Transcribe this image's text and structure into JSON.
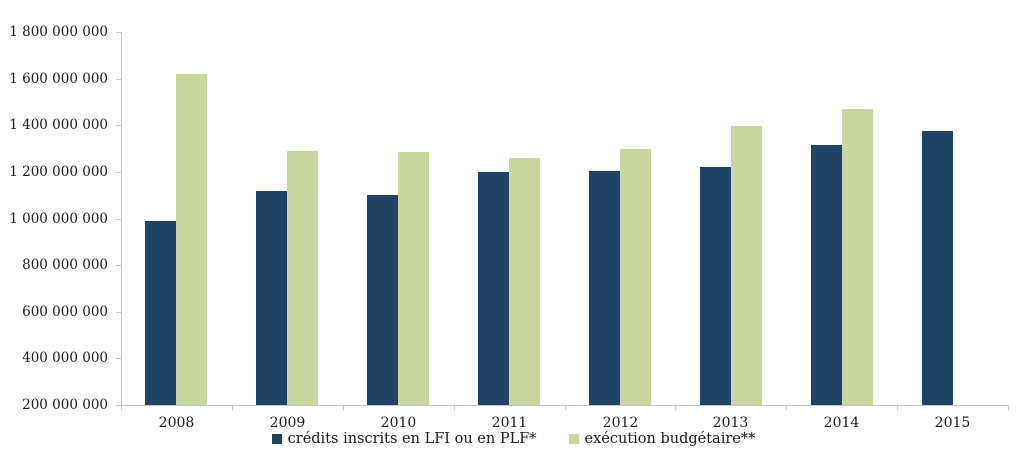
{
  "chart_data": {
    "type": "bar",
    "title": "",
    "categories": [
      "2008",
      "2009",
      "2010",
      "2011",
      "2012",
      "2013",
      "2014",
      "2015"
    ],
    "series": [
      {
        "name": "crédits inscrits en LFI ou en PLF*",
        "color": "#1f4466",
        "values": [
          990000000,
          1120000000,
          1100000000,
          1200000000,
          1205000000,
          1220000000,
          1315000000,
          1375000000
        ]
      },
      {
        "name": "exécution budgétaire**",
        "color": "#c9d79e",
        "values": [
          1620000000,
          1290000000,
          1285000000,
          1260000000,
          1300000000,
          1395000000,
          1470000000,
          null
        ]
      }
    ],
    "ylim": [
      200000000,
      1800000000
    ],
    "ytick_step": 200000000,
    "yticks_top_to_bottom": [
      "1 800 000 000",
      "1 600 000 000",
      "1 400 000 000",
      "1 200 000 000",
      "1 000 000 000",
      "800 000 000",
      "600 000 000",
      "400 000 000",
      "200 000 000"
    ],
    "grid": false,
    "legend_position": "bottom",
    "axis_color": "#c6c6c6"
  }
}
